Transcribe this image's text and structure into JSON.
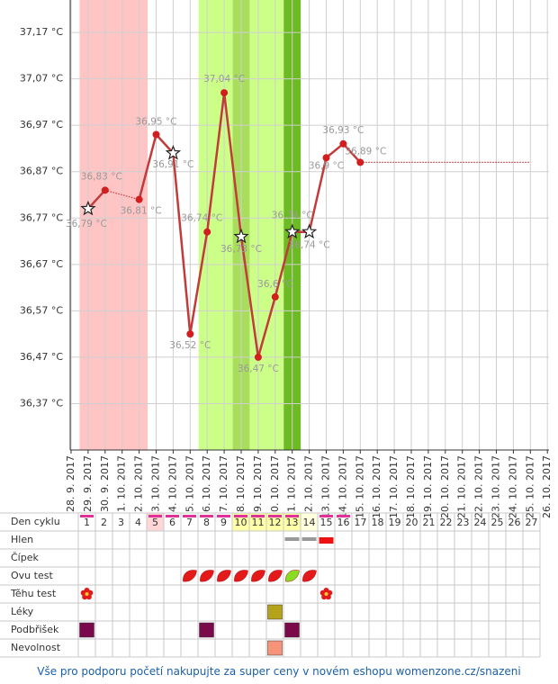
{
  "chart_data": {
    "type": "line",
    "x": [
      "28. 9. 2017",
      "29. 9. 2017",
      "30. 9. 2017",
      "1. 10. 2017",
      "2. 10. 2017",
      "3. 10. 2017",
      "4. 10. 2017",
      "5. 10. 2017",
      "6. 10. 2017",
      "7. 10. 2017",
      "8. 10. 2017",
      "9. 10. 2017",
      "10. 10. 2017",
      "11. 10. 2017",
      "12. 10. 2017",
      "13. 10. 2017",
      "14. 10. 2017",
      "15. 10. 2017",
      "16. 10. 2017",
      "17. 10. 2017",
      "18. 10. 2017",
      "19. 10. 2017",
      "20. 10. 2017",
      "21. 10. 2017",
      "22. 10. 2017",
      "23. 10. 2017",
      "24. 10. 2017",
      "25. 10. 2017",
      "26. 10. 2017"
    ],
    "series": [
      {
        "color": "#c23b3b",
        "values": [
          null,
          36.79,
          36.83,
          null,
          36.81,
          36.95,
          36.91,
          36.52,
          36.74,
          37.04,
          36.73,
          36.47,
          36.6,
          36.74,
          36.74,
          36.9,
          36.93,
          36.89,
          null,
          null,
          null,
          null,
          null,
          null,
          null,
          null,
          null,
          null,
          null
        ],
        "value_labels": [
          null,
          "36,79 °C",
          "36,83 °C",
          null,
          "36,81 °C",
          "36,95 °C",
          "36,91 °C",
          "36,52 °C",
          "36,74 °C",
          "37,04 °C",
          "36,73 °C",
          "36,47 °C",
          "36,6 °C",
          "36,74 °C",
          "36,74 °C",
          "36,9 °C",
          "36,93 °C",
          "36,89 °C",
          null,
          null,
          null,
          null,
          null,
          null,
          null,
          null,
          null,
          null,
          null
        ],
        "markers": [
          null,
          "star",
          "dot",
          null,
          "dot",
          "dot",
          "star",
          "dot",
          "dot",
          "dot",
          "star",
          "dot",
          "dot",
          "star",
          "star",
          "dot",
          "dot",
          "dot",
          null,
          null,
          null,
          null,
          null,
          null,
          null,
          null,
          null,
          null,
          null
        ]
      }
    ],
    "ylim": [
      36.27,
      37.24
    ],
    "yticks": [
      {
        "value": 36.37,
        "label": "36,37 °C"
      },
      {
        "value": 36.47,
        "label": "36,47 °C"
      },
      {
        "value": 36.57,
        "label": "36,57 °C"
      },
      {
        "value": 36.67,
        "label": "36,67 °C"
      },
      {
        "value": 36.77,
        "label": "36,77 °C"
      },
      {
        "value": 36.87,
        "label": "36,87 °C"
      },
      {
        "value": 36.97,
        "label": "36,97 °C"
      },
      {
        "value": 37.07,
        "label": "37,07 °C"
      },
      {
        "value": 37.17,
        "label": "37,17 °C"
      }
    ],
    "grid": true,
    "bands": [
      {
        "from": "29. 9. 2017",
        "to": "2. 10. 2017",
        "color": "#ffc4c4"
      },
      {
        "from": "6. 10. 2017",
        "to": "7. 10. 2017",
        "color": "#ccff88"
      },
      {
        "from": "8. 10. 2017",
        "to": "8. 10. 2017",
        "color": "#a8de5c"
      },
      {
        "from": "9. 10. 2017",
        "to": "10. 10. 2017",
        "color": "#ccff88"
      },
      {
        "from": "11. 10. 2017",
        "to": "11. 10. 2017",
        "color": "#6cbb22"
      }
    ]
  },
  "table": {
    "header": "Den cyklu",
    "days": [
      1,
      2,
      3,
      4,
      5,
      6,
      7,
      8,
      9,
      10,
      11,
      12,
      13,
      14,
      15,
      16,
      17,
      18,
      19,
      20,
      21,
      22,
      23,
      24,
      25,
      26,
      27
    ],
    "marked_days": [
      1,
      5,
      6,
      7,
      8,
      9,
      10,
      11,
      12,
      13,
      15,
      16
    ],
    "day_colors": [
      {
        "day": 5,
        "color": "#ffd6d6"
      },
      {
        "day": 10,
        "color": "#ffffaa"
      },
      {
        "day": 11,
        "color": "#ffffaa"
      },
      {
        "day": 12,
        "color": "#ffffaa"
      },
      {
        "day": 13,
        "color": "#ffffaa"
      },
      {
        "day": 14,
        "color": "#ffffdd"
      }
    ],
    "rows": [
      {
        "label": "Hlen",
        "entries": [
          {
            "day": 13,
            "kind": "bar",
            "color": "#999999"
          },
          {
            "day": 14,
            "kind": "bar",
            "color": "#999999"
          },
          {
            "day": 15,
            "kind": "bar",
            "color": "#ee1111"
          }
        ]
      },
      {
        "label": "Čípek",
        "entries": []
      },
      {
        "label": "Ovu test",
        "entries": [
          {
            "day": 7,
            "kind": "leaf",
            "color": "#e41a1a"
          },
          {
            "day": 8,
            "kind": "leaf",
            "color": "#e41a1a"
          },
          {
            "day": 9,
            "kind": "leaf",
            "color": "#e41a1a"
          },
          {
            "day": 10,
            "kind": "leaf",
            "color": "#e41a1a"
          },
          {
            "day": 11,
            "kind": "leaf",
            "color": "#e41a1a"
          },
          {
            "day": 12,
            "kind": "leaf",
            "color": "#e41a1a"
          },
          {
            "day": 13,
            "kind": "leaf",
            "color": "#88dd22"
          },
          {
            "day": 14,
            "kind": "leaf",
            "color": "#e41a1a"
          }
        ]
      },
      {
        "label": "Těhu test",
        "entries": [
          {
            "day": 1,
            "kind": "flower",
            "color": "#e41a1a"
          },
          {
            "day": 15,
            "kind": "flower",
            "color": "#e41a1a"
          }
        ]
      },
      {
        "label": "Léky",
        "entries": [
          {
            "day": 12,
            "kind": "square",
            "color": "#b3a21a"
          }
        ]
      },
      {
        "label": "Podbřišek",
        "entries": [
          {
            "day": 1,
            "kind": "square",
            "color": "#7a0a4a"
          },
          {
            "day": 8,
            "kind": "square",
            "color": "#7a0a4a"
          },
          {
            "day": 13,
            "kind": "square",
            "color": "#7a0a4a"
          }
        ]
      },
      {
        "label": "Nevolnost",
        "entries": [
          {
            "day": 12,
            "kind": "square",
            "color": "#f7937a"
          }
        ]
      }
    ]
  },
  "footer": "Vše pro podporu početí nakupujte za super ceny v novém eshopu womenzone.cz/snazeni"
}
